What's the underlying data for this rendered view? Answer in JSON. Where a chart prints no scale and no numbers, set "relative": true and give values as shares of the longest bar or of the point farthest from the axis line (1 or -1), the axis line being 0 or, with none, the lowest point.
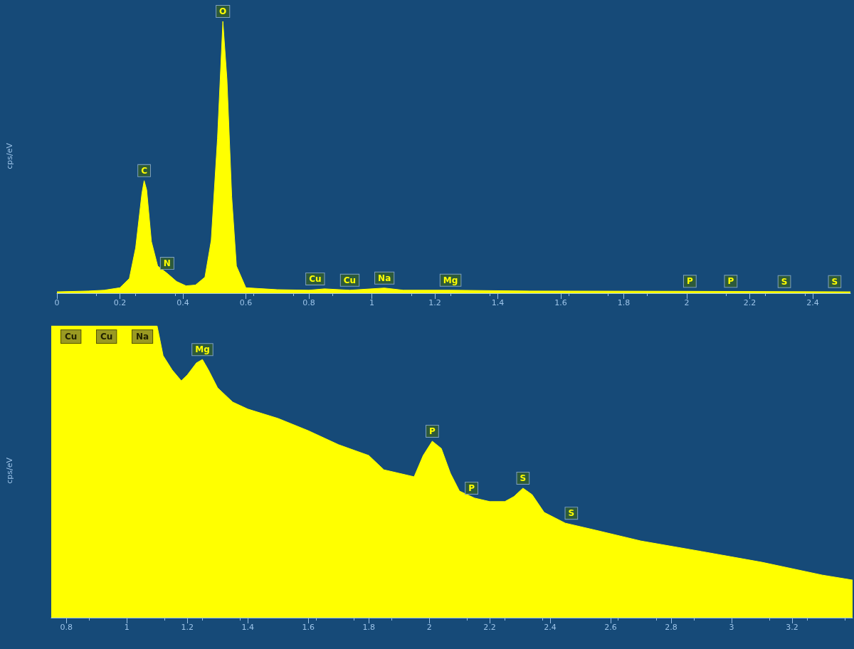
{
  "chart_data": [
    {
      "type": "area",
      "relative": true,
      "ylabel": "cps/eV",
      "color": "#ffff00",
      "grid": false,
      "x": [
        0,
        0.1,
        0.15,
        0.2,
        0.23,
        0.25,
        0.27,
        0.277,
        0.285,
        0.3,
        0.32,
        0.35,
        0.38,
        0.41,
        0.44,
        0.47,
        0.49,
        0.51,
        0.527,
        0.54,
        0.555,
        0.57,
        0.6,
        0.7,
        0.8,
        0.85,
        0.93,
        1.04,
        1.1,
        1.25,
        1.5,
        2.0,
        2.52
      ],
      "values": [
        0.005,
        0.008,
        0.011,
        0.02,
        0.054,
        0.167,
        0.368,
        0.414,
        0.38,
        0.19,
        0.1,
        0.073,
        0.043,
        0.027,
        0.03,
        0.059,
        0.194,
        0.57,
        1,
        0.785,
        0.355,
        0.1,
        0.02,
        0.013,
        0.011,
        0.016,
        0.011,
        0.019,
        0.011,
        0.011,
        0.008,
        0.007,
        0.005
      ],
      "xlim": [
        0,
        2.52
      ],
      "xticks": [
        0,
        0.2,
        0.4,
        0.6,
        0.8,
        1,
        1.2,
        1.4,
        1.6,
        1.8,
        2,
        2.2,
        2.4
      ],
      "annotations": [
        {
          "text": "C",
          "x": 0.277,
          "y": 0.414
        },
        {
          "text": "N",
          "x": 0.35,
          "y": 0.073
        },
        {
          "text": "O",
          "x": 0.527,
          "y": 1
        },
        {
          "text": "Cu",
          "x": 0.82,
          "y": 0.016
        },
        {
          "text": "Cu",
          "x": 0.93,
          "y": 0.011
        },
        {
          "text": "Na",
          "x": 1.04,
          "y": 0.019
        },
        {
          "text": "Mg",
          "x": 1.25,
          "y": 0.011
        },
        {
          "text": "P",
          "x": 2.01,
          "y": 0.007
        },
        {
          "text": "P",
          "x": 2.14,
          "y": 0.007
        },
        {
          "text": "S",
          "x": 2.31,
          "y": 0.006
        },
        {
          "text": "S",
          "x": 2.47,
          "y": 0.006
        }
      ]
    },
    {
      "type": "area",
      "relative": true,
      "ylabel": "cps/eV",
      "color": "#ffff00",
      "grid": false,
      "x": [
        0.75,
        0.9,
        1.05,
        1.1,
        1.106,
        1.12,
        1.15,
        1.18,
        1.2,
        1.23,
        1.25,
        1.27,
        1.3,
        1.35,
        1.4,
        1.5,
        1.6,
        1.7,
        1.8,
        1.85,
        1.9,
        1.95,
        1.98,
        2.01,
        2.04,
        2.07,
        2.1,
        2.15,
        2.2,
        2.25,
        2.28,
        2.31,
        2.34,
        2.38,
        2.45,
        2.55,
        2.7,
        2.9,
        3.1,
        3.3,
        3.4
      ],
      "values": [
        1,
        1,
        1,
        1,
        0.97,
        0.898,
        0.849,
        0.812,
        0.832,
        0.873,
        0.885,
        0.849,
        0.788,
        0.739,
        0.715,
        0.683,
        0.641,
        0.593,
        0.556,
        0.507,
        0.495,
        0.483,
        0.556,
        0.605,
        0.58,
        0.495,
        0.434,
        0.41,
        0.398,
        0.398,
        0.415,
        0.444,
        0.422,
        0.361,
        0.324,
        0.3,
        0.263,
        0.227,
        0.19,
        0.146,
        0.129
      ],
      "xlim": [
        0.75,
        3.4
      ],
      "xticks": [
        0.8,
        1,
        1.2,
        1.4,
        1.6,
        1.8,
        2,
        2.2,
        2.4,
        2.6,
        2.8,
        3,
        3.2
      ],
      "annotations": [
        "Cu",
        "Cu",
        "Na",
        {
          "text": "Mg",
          "x": 1.25,
          "y": 0.885
        },
        {
          "text": "P",
          "x": 2.01,
          "y": 0.605
        },
        {
          "text": "P",
          "x": 2.14,
          "y": 0.41
        },
        {
          "text": "S",
          "x": 2.31,
          "y": 0.444
        },
        {
          "text": "S",
          "x": 2.47,
          "y": 0.324
        }
      ]
    }
  ]
}
